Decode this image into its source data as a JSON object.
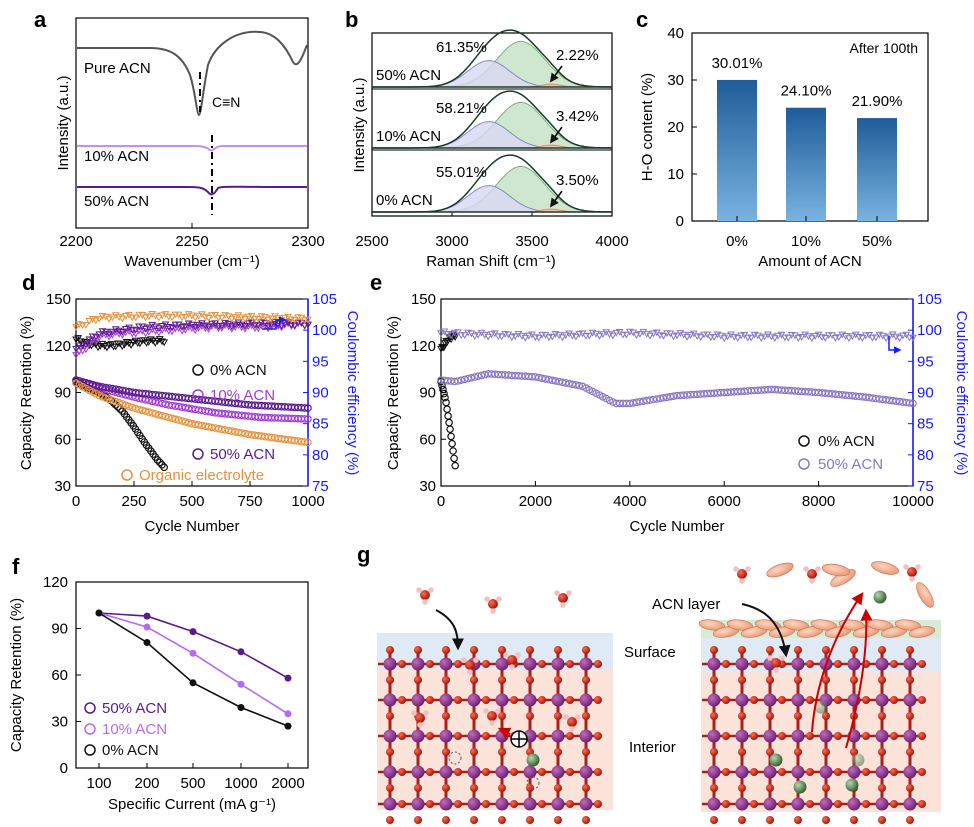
{
  "chart_data": [
    {
      "panel": "a",
      "type": "line",
      "xlabel": "Wavenumber (cm⁻¹)",
      "ylabel": "Intensity (a.u.)",
      "xticks": [
        "2200",
        "2250",
        "2300"
      ],
      "xlim": [
        2200,
        2300
      ],
      "annotation": "C≡N",
      "series": [
        {
          "name": "Pure ACN",
          "color": "#555555",
          "peak": 2253
        },
        {
          "name": "10% ACN",
          "color": "#c58ff0",
          "peak": 2258
        },
        {
          "name": "50% ACN",
          "color": "#5a1a8c",
          "peak": 2258
        }
      ]
    },
    {
      "panel": "b",
      "type": "line",
      "xlabel": "Raman Shift (cm⁻¹)",
      "ylabel": "Intensity (a.u.)",
      "xticks": [
        "2500",
        "3000",
        "3500",
        "4000"
      ],
      "xlim": [
        2500,
        4000
      ],
      "subpanels": [
        {
          "label": "50% ACN",
          "left_pct": "61.35%",
          "right_pct": "2.22%"
        },
        {
          "label": "10% ACN",
          "left_pct": "58.21%",
          "right_pct": "3.42%"
        },
        {
          "label": "0% ACN",
          "left_pct": "55.01%",
          "right_pct": "3.50%"
        }
      ]
    },
    {
      "panel": "c",
      "type": "bar",
      "title": "After 100th",
      "categories": [
        "0%",
        "10%",
        "50%"
      ],
      "values": [
        30.01,
        24.1,
        21.9
      ],
      "value_labels": [
        "30.01%",
        "24.10%",
        "21.90%"
      ],
      "xlabel": "Amount of ACN",
      "ylabel": "H-O content (%)",
      "ylim": [
        0,
        40
      ],
      "yticks": [
        "0",
        "10",
        "20",
        "30",
        "40"
      ]
    },
    {
      "panel": "d",
      "type": "scatter",
      "xlabel": "Cycle Number",
      "ylabel": "Capacity Retention (%)",
      "y2label": "Coulombic efficiency (%)",
      "xlim": [
        0,
        1000
      ],
      "ylim": [
        30,
        150
      ],
      "y2lim": [
        75,
        105
      ],
      "xticks": [
        "0",
        "250",
        "500",
        "750",
        "1000"
      ],
      "yticks": [
        "30",
        "60",
        "90",
        "120",
        "150"
      ],
      "y2ticks": [
        "75",
        "80",
        "85",
        "90",
        "95",
        "100",
        "105"
      ],
      "legend": [
        "0%  ACN",
        "10% ACN",
        "50% ACN",
        "Organic electrolyte"
      ],
      "series": [
        {
          "name": "0%  ACN",
          "color": "#111111",
          "capacity": [
            [
              0,
              97
            ],
            [
              50,
              93
            ],
            [
              100,
              90
            ],
            [
              150,
              85
            ],
            [
              200,
              78
            ],
            [
              250,
              68
            ],
            [
              300,
              57
            ],
            [
              350,
              47
            ],
            [
              380,
              42
            ]
          ],
          "ce": [
            [
              5,
              98.5
            ],
            [
              50,
              97.8
            ],
            [
              100,
              97.5
            ],
            [
              150,
              97.5
            ],
            [
              200,
              97.7
            ],
            [
              250,
              98.0
            ],
            [
              300,
              98.2
            ],
            [
              380,
              98.3
            ]
          ]
        },
        {
          "name": "10% ACN",
          "color": "#a23bd6",
          "capacity": [
            [
              0,
              98
            ],
            [
              100,
              93
            ],
            [
              250,
              87
            ],
            [
              400,
              82
            ],
            [
              600,
              77
            ],
            [
              800,
              74
            ],
            [
              1000,
              73
            ]
          ],
          "ce": [
            [
              5,
              96
            ],
            [
              100,
              99
            ],
            [
              200,
              99.5
            ],
            [
              400,
              100
            ],
            [
              600,
              100.5
            ],
            [
              800,
              100.5
            ],
            [
              1000,
              101
            ]
          ]
        },
        {
          "name": "50% ACN",
          "color": "#5a1a8c",
          "capacity": [
            [
              0,
              98
            ],
            [
              100,
              94
            ],
            [
              250,
              90
            ],
            [
              500,
              86
            ],
            [
              750,
              82
            ],
            [
              1000,
              80
            ]
          ],
          "ce": [
            [
              5,
              97
            ],
            [
              100,
              99.5
            ],
            [
              300,
              100.5
            ],
            [
              500,
              100.8
            ],
            [
              800,
              101
            ],
            [
              1000,
              101
            ]
          ]
        },
        {
          "name": "Organic electrolyte",
          "color": "#e8913c",
          "capacity": [
            [
              0,
              96
            ],
            [
              100,
              88
            ],
            [
              250,
              80
            ],
            [
              500,
              70
            ],
            [
              750,
              63
            ],
            [
              1000,
              58
            ]
          ],
          "ce": [
            [
              5,
              100.5
            ],
            [
              100,
              102
            ],
            [
              300,
              102.3
            ],
            [
              500,
              102.3
            ],
            [
              800,
              102
            ],
            [
              1000,
              101.8
            ]
          ]
        }
      ]
    },
    {
      "panel": "e",
      "type": "scatter",
      "xlabel": "Cycle Number",
      "ylabel": "Capacity Retention (%)",
      "y2label": "Coulombic efficiency (%)",
      "xlim": [
        0,
        10000
      ],
      "ylim": [
        30,
        150
      ],
      "y2lim": [
        75,
        105
      ],
      "xticks": [
        "0",
        "2000",
        "4000",
        "6000",
        "8000",
        "10000"
      ],
      "yticks": [
        "30",
        "60",
        "90",
        "120",
        "150"
      ],
      "y2ticks": [
        "75",
        "80",
        "85",
        "90",
        "95",
        "100",
        "105"
      ],
      "legend": [
        "0% ACN",
        "50% ACN"
      ],
      "series": [
        {
          "name": "0% ACN",
          "color": "#111111",
          "capacity": [
            [
              0,
              97
            ],
            [
              100,
              85
            ],
            [
              200,
              65
            ],
            [
              300,
              43
            ]
          ],
          "ce": [
            [
              20,
              97
            ],
            [
              150,
              98.5
            ],
            [
              300,
              99.2
            ]
          ]
        },
        {
          "name": "50% ACN",
          "color": "#8877c4",
          "capacity": [
            [
              0,
              98
            ],
            [
              300,
              97
            ],
            [
              1000,
              102
            ],
            [
              2000,
              100
            ],
            [
              3000,
              94
            ],
            [
              3700,
              83
            ],
            [
              4000,
              83
            ],
            [
              5000,
              88
            ],
            [
              6000,
              90
            ],
            [
              7000,
              92
            ],
            [
              8000,
              90
            ],
            [
              9000,
              87
            ],
            [
              10000,
              83
            ]
          ],
          "ce": [
            [
              0,
              99.5
            ],
            [
              2000,
              99
            ],
            [
              4000,
              99.5
            ],
            [
              6000,
              99
            ],
            [
              8000,
              99
            ],
            [
              10000,
              99
            ]
          ]
        }
      ]
    },
    {
      "panel": "f",
      "type": "line",
      "xlabel": "Specific Current (mA g⁻¹)",
      "ylabel": "Capacity Retention (%)",
      "categories": [
        "100",
        "200",
        "500",
        "1000",
        "2000"
      ],
      "ylim": [
        0,
        120
      ],
      "yticks": [
        "0",
        "30",
        "60",
        "90",
        "120"
      ],
      "legend": [
        "50% ACN",
        "10% ACN",
        "0% ACN"
      ],
      "series": [
        {
          "name": "50% ACN",
          "color": "#5a1a8c",
          "values": [
            100,
            98,
            88,
            75,
            58
          ]
        },
        {
          "name": "10% ACN",
          "color": "#b56bf0",
          "values": [
            100,
            91,
            74,
            54,
            35
          ]
        },
        {
          "name": "0% ACN",
          "color": "#111111",
          "values": [
            100,
            81,
            55,
            39,
            27
          ]
        }
      ]
    }
  ],
  "panels": {
    "a": "a",
    "b": "b",
    "c": "c",
    "d": "d",
    "e": "e",
    "f": "f",
    "g": "g"
  },
  "schematic": {
    "acn_layer": "ACN layer",
    "surface": "Surface",
    "interior": "Interior"
  }
}
